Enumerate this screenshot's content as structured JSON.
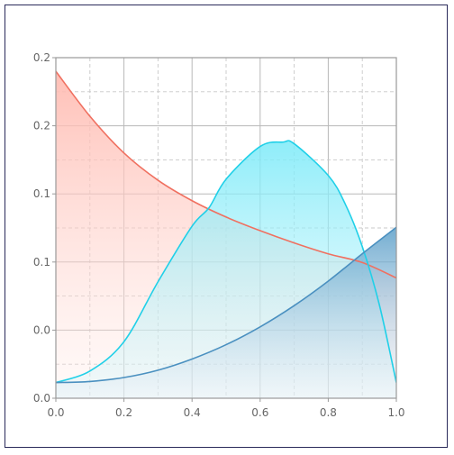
{
  "chart_data": {
    "type": "area",
    "title": "",
    "xlabel": "",
    "ylabel": "",
    "xlim": [
      0.0,
      1.0
    ],
    "ylim": [
      0.0,
      0.25
    ],
    "x_ticks": [
      "0.0",
      "0.2",
      "0.4",
      "0.6",
      "0.8",
      "1.0"
    ],
    "y_ticks": [
      "0.0",
      "0.0",
      "0.1",
      "0.1",
      "0.2",
      "0.2"
    ],
    "grid": true,
    "legend": "none",
    "series": [
      {
        "color": "#f07060",
        "x": [
          0.0,
          0.1,
          0.2,
          0.3,
          0.4,
          0.5,
          0.6,
          0.7,
          0.8,
          0.9,
          1.0
        ],
        "y": [
          0.24,
          0.207,
          0.18,
          0.16,
          0.145,
          0.133,
          0.123,
          0.114,
          0.106,
          0.0996,
          0.0883
        ]
      },
      {
        "color": "#20d0e8",
        "x": [
          0.0,
          0.1,
          0.2,
          0.3,
          0.4,
          0.45,
          0.5,
          0.6,
          0.667,
          0.7,
          0.8,
          0.85,
          0.9,
          0.95,
          1.0
        ],
        "y": [
          0.0115,
          0.02,
          0.0415,
          0.0855,
          0.1263,
          0.1399,
          0.1608,
          0.1848,
          0.188,
          0.1868,
          0.1635,
          0.1425,
          0.1113,
          0.0687,
          0.0115
        ]
      },
      {
        "color": "#4a90c0",
        "x": [
          0.0,
          0.1,
          0.2,
          0.3,
          0.4,
          0.5,
          0.6,
          0.7,
          0.8,
          0.9,
          1.0
        ],
        "y": [
          0.0115,
          0.0123,
          0.0152,
          0.0206,
          0.0288,
          0.0393,
          0.0524,
          0.068,
          0.086,
          0.1061,
          0.1255
        ]
      }
    ]
  }
}
